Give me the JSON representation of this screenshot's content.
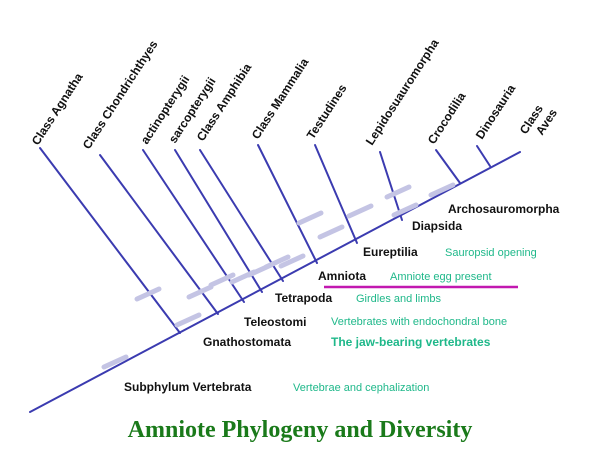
{
  "colors": {
    "line": "#3b3bb0",
    "tick": "#c4c4e4",
    "label": "#111111",
    "trait": "#1fb88a",
    "underline": "#c218b0",
    "title": "#1a7a1a"
  },
  "taxa": [
    "Class Agnatha",
    "Class Chondrichthyes",
    "actinopterygii",
    "sarcopterygii",
    "Class Amphibia",
    "Class Mammalia",
    "Testudines",
    "Lepidosuauromorpha",
    "Crocodilia",
    "Dinosauria",
    "Class Aves"
  ],
  "clades": [
    {
      "name": "Subphylum Vertebrata",
      "trait": "Vertebrae and cephalization"
    },
    {
      "name": "Gnathostomata",
      "trait": "The jaw-bearing vertebrates"
    },
    {
      "name": "Teleostomi",
      "trait": "Vertebrates with endochondral bone"
    },
    {
      "name": "Tetrapoda",
      "trait": "Girdles and limbs"
    },
    {
      "name": "Amniota",
      "trait": "Amniote egg present"
    },
    {
      "name": "Eureptilia",
      "trait": "Sauropsid opening"
    },
    {
      "name": "Diapsida",
      "trait": ""
    },
    {
      "name": "Archosauromorpha",
      "trait": ""
    }
  ],
  "title": "Amniote Phylogeny and Diversity"
}
